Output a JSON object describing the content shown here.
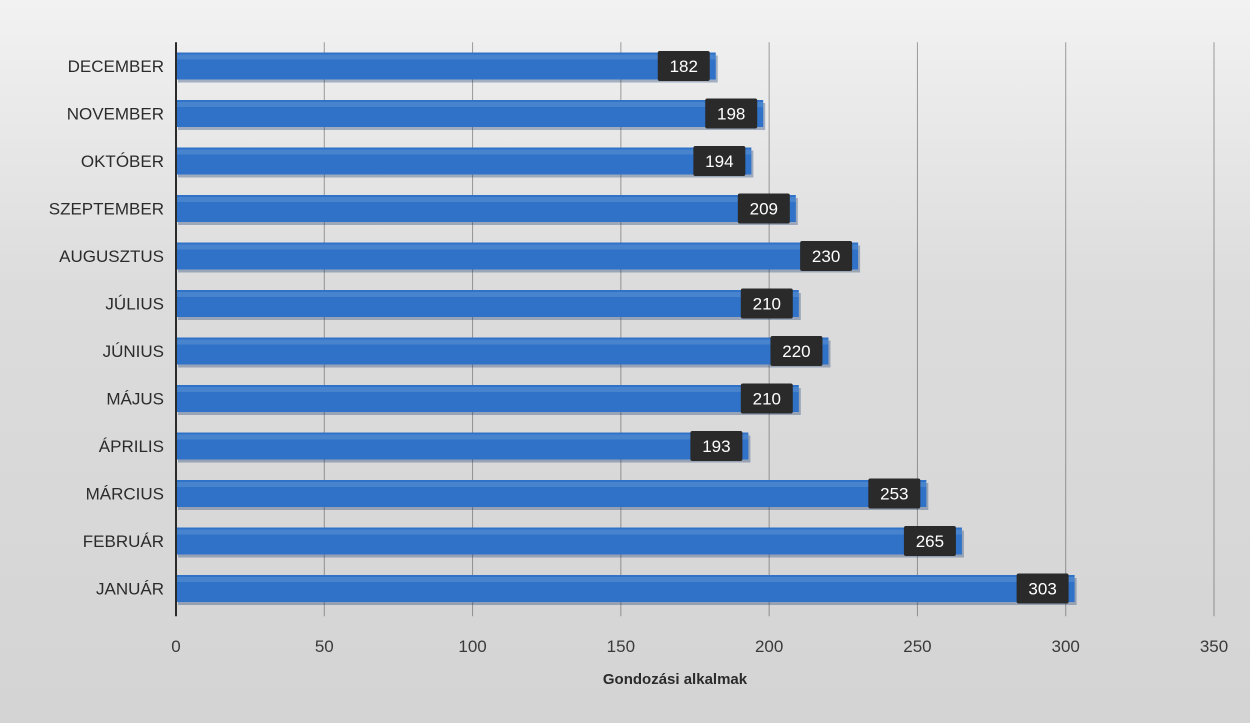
{
  "chart_data": {
    "type": "bar",
    "orientation": "horizontal",
    "categories": [
      "DECEMBER",
      "NOVEMBER",
      "OKTÓBER",
      "SZEPTEMBER",
      "AUGUSZTUS",
      "JÚLIUS",
      "JÚNIUS",
      "MÁJUS",
      "ÁPRILIS",
      "MÁRCIUS",
      "FEBRUÁR",
      "JANUÁR"
    ],
    "values": [
      182,
      198,
      194,
      209,
      230,
      210,
      220,
      210,
      193,
      253,
      265,
      303
    ],
    "xlabel": "Gondozási alkalmak",
    "ylabel": "",
    "xlim": [
      0,
      350
    ],
    "xticks": [
      0,
      50,
      100,
      150,
      200,
      250,
      300,
      350
    ],
    "grid": true,
    "data_labels": true,
    "bar_color": "#2f72c8",
    "label_box_color": "#2a2a2a"
  }
}
